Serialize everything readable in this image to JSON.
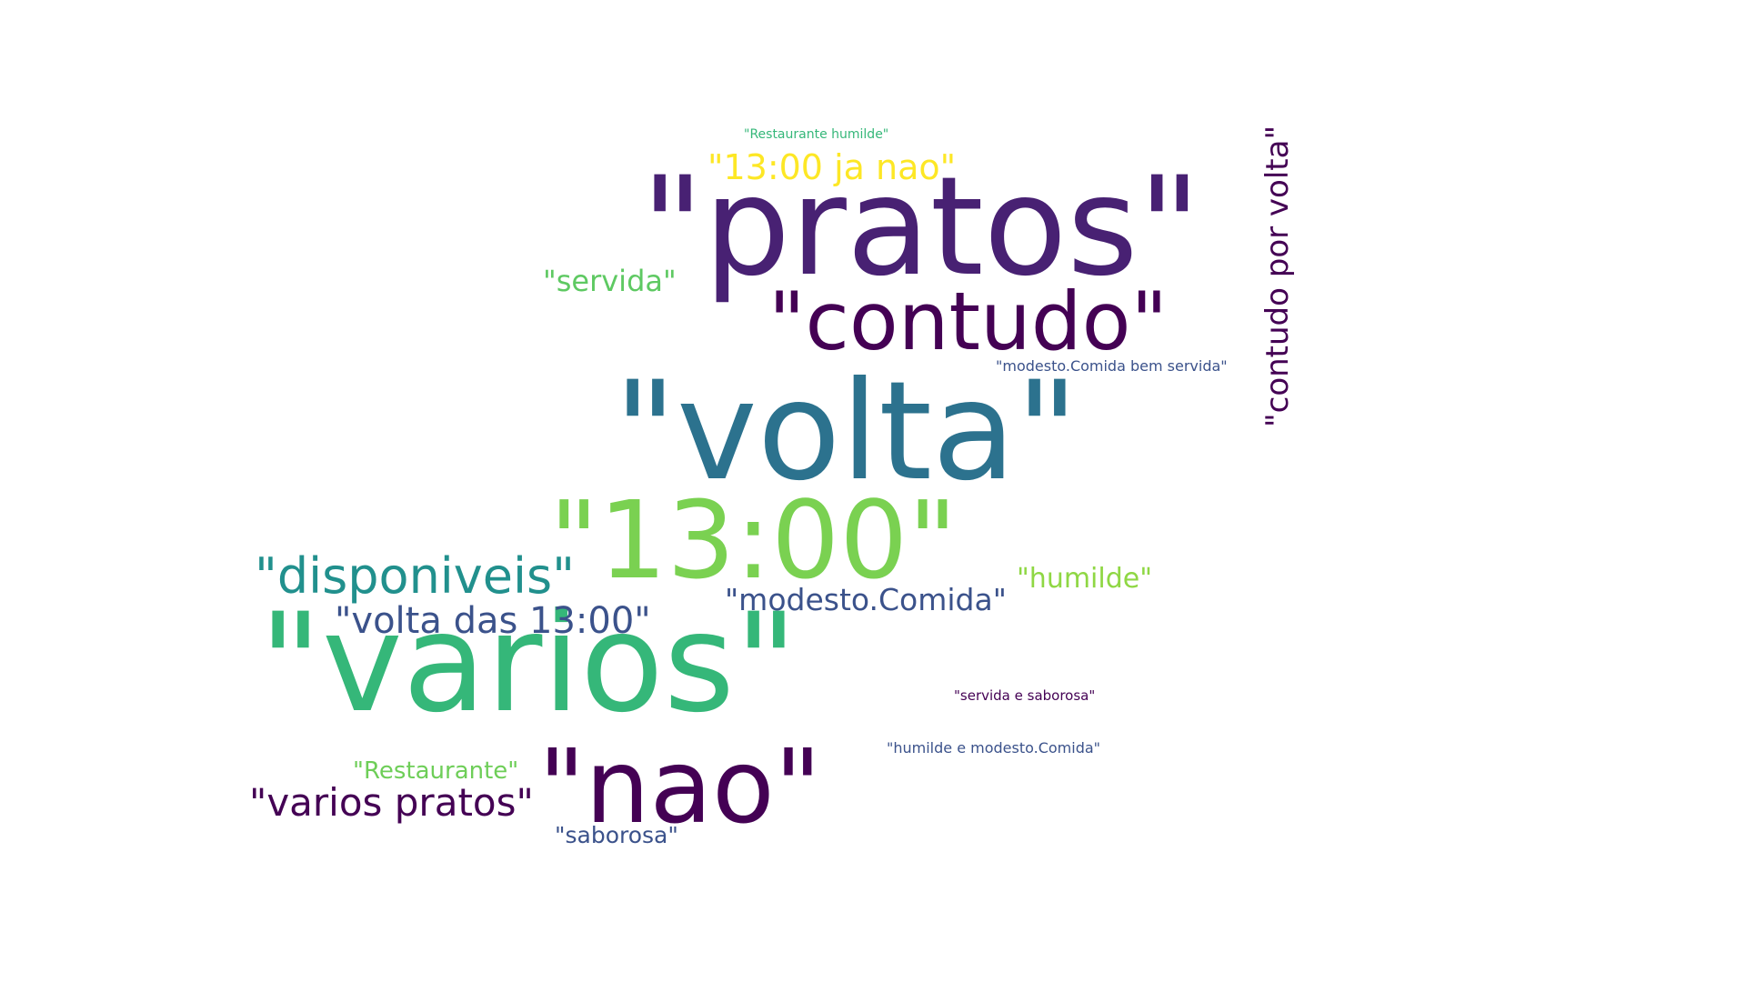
{
  "word_cloud": {
    "words": [
      {
        "text": "\"pratos\"",
        "color": "#482173"
      },
      {
        "text": "\"volta\"",
        "color": "#2c728e"
      },
      {
        "text": "\"varios\"",
        "color": "#35b779"
      },
      {
        "text": "\"13:00\"",
        "color": "#7ad151"
      },
      {
        "text": "\"nao\"",
        "color": "#440154"
      },
      {
        "text": "\"contudo\"",
        "color": "#440154"
      },
      {
        "text": "\"disponiveis\"",
        "color": "#21908d"
      },
      {
        "text": "\"volta das 13:00\"",
        "color": "#3b528b"
      },
      {
        "text": "\"varios pratos\"",
        "color": "#440154"
      },
      {
        "text": "\"modesto.Comida\"",
        "color": "#3b528b"
      },
      {
        "text": "\"humilde\"",
        "color": "#8fd744"
      },
      {
        "text": "\"13:00 ja nao\"",
        "color": "#fde725"
      },
      {
        "text": "\"servida\"",
        "color": "#5ec962"
      },
      {
        "text": "\"Restaurante\"",
        "color": "#6ece58"
      },
      {
        "text": "\"saborosa\"",
        "color": "#3b528b"
      },
      {
        "text": "\"contudo por volta\"",
        "color": "#440154"
      },
      {
        "text": "\"modesto.Comida bem servida\"",
        "color": "#3b528b"
      },
      {
        "text": "\"servida e saborosa\"",
        "color": "#440154"
      },
      {
        "text": "\"humilde e modesto.Comida\"",
        "color": "#3b528b"
      },
      {
        "text": "\"Restaurante humilde\"",
        "color": "#35b779"
      }
    ]
  }
}
